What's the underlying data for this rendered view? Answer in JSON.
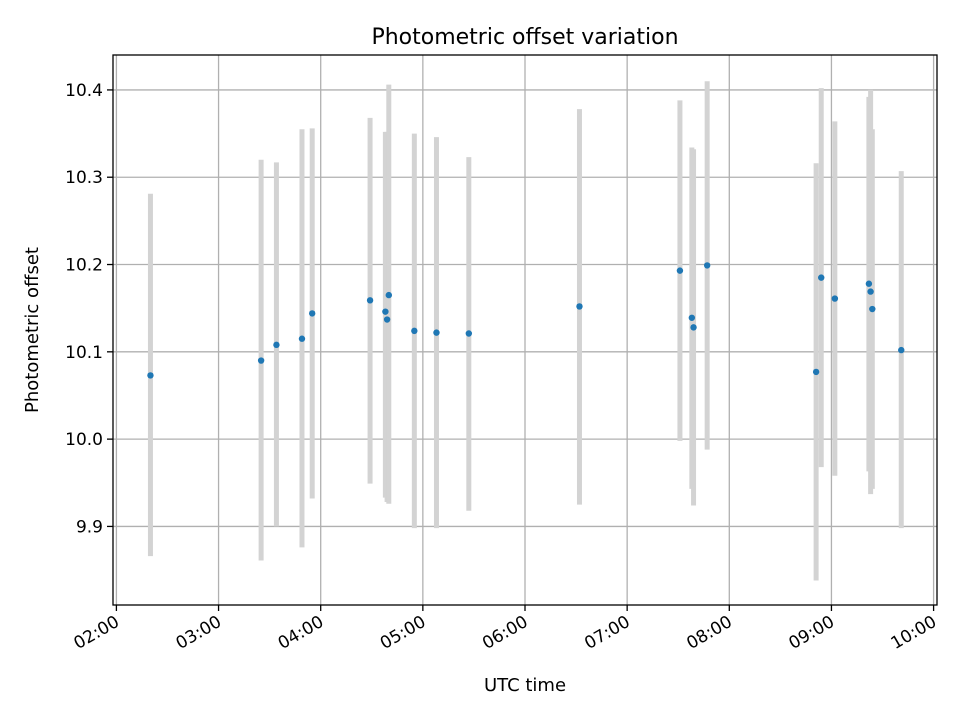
{
  "chart_data": {
    "type": "scatter",
    "title": "Photometric offset variation",
    "xlabel": "UTC time",
    "ylabel": "Photometric offset",
    "x_ticks": [
      "02:00",
      "03:00",
      "04:00",
      "05:00",
      "06:00",
      "07:00",
      "08:00",
      "09:00",
      "10:00"
    ],
    "y_ticks": [
      "9.9",
      "10.0",
      "10.1",
      "10.2",
      "10.3",
      "10.4"
    ],
    "xlim": [
      "01:58",
      "10:02"
    ],
    "ylim": [
      9.81,
      10.44
    ],
    "grid": true,
    "marker_color": "#1f77b4",
    "errorbar_color": "#d3d3d3",
    "points": [
      {
        "x": "02:20",
        "y": 10.073,
        "ylow": 9.866,
        "yhigh": 10.281
      },
      {
        "x": "03:25",
        "y": 10.09,
        "ylow": 9.861,
        "yhigh": 10.32
      },
      {
        "x": "03:34",
        "y": 10.108,
        "ylow": 9.9,
        "yhigh": 10.317
      },
      {
        "x": "03:49",
        "y": 10.115,
        "ylow": 9.876,
        "yhigh": 10.355
      },
      {
        "x": "03:55",
        "y": 10.144,
        "ylow": 9.932,
        "yhigh": 10.356
      },
      {
        "x": "04:29",
        "y": 10.159,
        "ylow": 9.949,
        "yhigh": 10.368
      },
      {
        "x": "04:38",
        "y": 10.146,
        "ylow": 9.933,
        "yhigh": 10.352
      },
      {
        "x": "04:39",
        "y": 10.137,
        "ylow": 9.928,
        "yhigh": 10.352
      },
      {
        "x": "04:40",
        "y": 10.165,
        "ylow": 9.926,
        "yhigh": 10.406
      },
      {
        "x": "04:55",
        "y": 10.124,
        "ylow": 9.898,
        "yhigh": 10.35
      },
      {
        "x": "05:08",
        "y": 10.122,
        "ylow": 9.898,
        "yhigh": 10.346
      },
      {
        "x": "05:27",
        "y": 10.121,
        "ylow": 9.918,
        "yhigh": 10.323
      },
      {
        "x": "06:32",
        "y": 10.152,
        "ylow": 9.925,
        "yhigh": 10.378
      },
      {
        "x": "07:31",
        "y": 10.193,
        "ylow": 9.998,
        "yhigh": 10.388
      },
      {
        "x": "07:38",
        "y": 10.139,
        "ylow": 9.943,
        "yhigh": 10.334
      },
      {
        "x": "07:39",
        "y": 10.128,
        "ylow": 9.924,
        "yhigh": 10.332
      },
      {
        "x": "07:47",
        "y": 10.199,
        "ylow": 9.988,
        "yhigh": 10.41
      },
      {
        "x": "08:51",
        "y": 10.077,
        "ylow": 9.838,
        "yhigh": 10.316
      },
      {
        "x": "08:54",
        "y": 10.185,
        "ylow": 9.968,
        "yhigh": 10.402
      },
      {
        "x": "09:02",
        "y": 10.161,
        "ylow": 9.958,
        "yhigh": 10.364
      },
      {
        "x": "09:22",
        "y": 10.178,
        "ylow": 9.963,
        "yhigh": 10.392
      },
      {
        "x": "09:23",
        "y": 10.169,
        "ylow": 9.937,
        "yhigh": 10.4
      },
      {
        "x": "09:24",
        "y": 10.149,
        "ylow": 9.943,
        "yhigh": 10.355
      },
      {
        "x": "09:41",
        "y": 10.102,
        "ylow": 9.898,
        "yhigh": 10.307
      }
    ]
  }
}
